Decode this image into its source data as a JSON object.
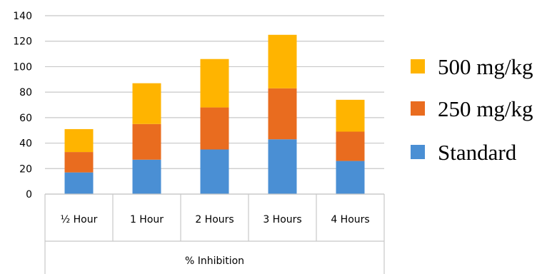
{
  "chart_data": {
    "type": "bar",
    "stacked": true,
    "categories": [
      "½ Hour",
      "1 Hour",
      "2 Hours",
      "3 Hours",
      "4 Hours"
    ],
    "xlabel": "% Inhibition",
    "ylim": [
      0,
      140
    ],
    "yticks": [
      0,
      20,
      40,
      60,
      80,
      100,
      120,
      140
    ],
    "grid": true,
    "legend_position": "right",
    "series": [
      {
        "name": "Standard",
        "color": "#4a8fd4",
        "values": [
          17,
          27,
          35,
          43,
          26
        ]
      },
      {
        "name": "250 mg/kg",
        "color": "#e96c1f",
        "values": [
          16,
          28,
          33,
          40,
          23
        ]
      },
      {
        "name": "500 mg/kg",
        "color": "#ffb400",
        "values": [
          18,
          32,
          38,
          42,
          25
        ]
      }
    ],
    "legend_order": [
      "500 mg/kg",
      "250 mg/kg",
      "Standard"
    ]
  }
}
